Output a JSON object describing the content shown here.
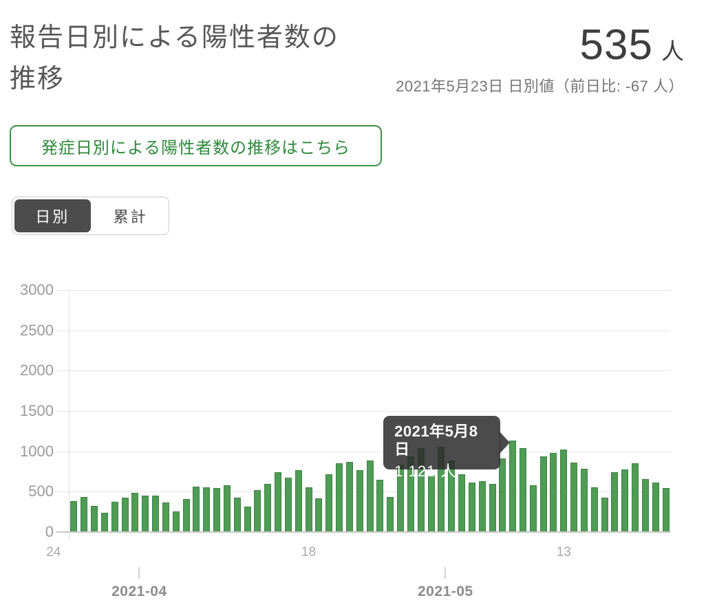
{
  "header": {
    "title": "報告日別による陽性者数の推移",
    "value": "535",
    "unit": "人",
    "date_note": "2021年5月23日 日別値（前日比: -67 人）"
  },
  "link_button": {
    "label": "発症日別による陽性者数の推移はこちら"
  },
  "toggle": {
    "options": [
      {
        "label": "日別",
        "selected": true
      },
      {
        "label": "累計",
        "selected": false
      }
    ]
  },
  "tooltip": {
    "title": "2021年5月8日",
    "value": "1,121 人",
    "target_index": 43
  },
  "chart_data": {
    "type": "bar",
    "title": "報告日別による陽性者数の推移（日別）",
    "xlabel": "",
    "ylabel": "",
    "ylim": [
      0,
      3000
    ],
    "y_ticks": [
      0,
      500,
      1000,
      1500,
      2000,
      2500,
      3000
    ],
    "grid": true,
    "legend": "none",
    "dates": [
      "2021-03-26",
      "2021-03-27",
      "2021-03-28",
      "2021-03-29",
      "2021-03-30",
      "2021-03-31",
      "2021-04-01",
      "2021-04-02",
      "2021-04-03",
      "2021-04-04",
      "2021-04-05",
      "2021-04-06",
      "2021-04-07",
      "2021-04-08",
      "2021-04-09",
      "2021-04-10",
      "2021-04-11",
      "2021-04-12",
      "2021-04-13",
      "2021-04-14",
      "2021-04-15",
      "2021-04-16",
      "2021-04-17",
      "2021-04-18",
      "2021-04-19",
      "2021-04-20",
      "2021-04-21",
      "2021-04-22",
      "2021-04-23",
      "2021-04-24",
      "2021-04-25",
      "2021-04-26",
      "2021-04-27",
      "2021-04-28",
      "2021-04-29",
      "2021-04-30",
      "2021-05-01",
      "2021-05-02",
      "2021-05-03",
      "2021-05-04",
      "2021-05-05",
      "2021-05-06",
      "2021-05-07",
      "2021-05-08",
      "2021-05-09",
      "2021-05-10",
      "2021-05-11",
      "2021-05-12",
      "2021-05-13",
      "2021-05-14",
      "2021-05-15",
      "2021-05-16",
      "2021-05-17",
      "2021-05-18",
      "2021-05-19",
      "2021-05-20",
      "2021-05-21",
      "2021-05-22",
      "2021-05-23"
    ],
    "values": [
      376,
      430,
      313,
      234,
      364,
      414,
      475,
      440,
      446,
      355,
      249,
      399,
      555,
      545,
      537,
      570,
      421,
      306,
      510,
      591,
      729,
      667,
      759,
      543,
      405,
      711,
      843,
      861,
      759,
      876,
      635,
      425,
      828,
      925,
      1027,
      698,
      1050,
      879,
      708,
      609,
      621,
      591,
      907,
      1121,
      1032,
      573,
      925,
      969,
      1010,
      854,
      772,
      542,
      419,
      732,
      766,
      843,
      649,
      602,
      535
    ],
    "x_ticks": [
      {
        "label": "24",
        "index": -2
      },
      {
        "label": "18",
        "index": 23
      },
      {
        "label": "13",
        "index": 48
      }
    ],
    "month_labels": [
      {
        "label": "2021-04",
        "index": 6
      },
      {
        "label": "2021-05",
        "index": 36
      }
    ],
    "bar_color": "#4f9c54",
    "bar_border_color": "#3c8143"
  }
}
